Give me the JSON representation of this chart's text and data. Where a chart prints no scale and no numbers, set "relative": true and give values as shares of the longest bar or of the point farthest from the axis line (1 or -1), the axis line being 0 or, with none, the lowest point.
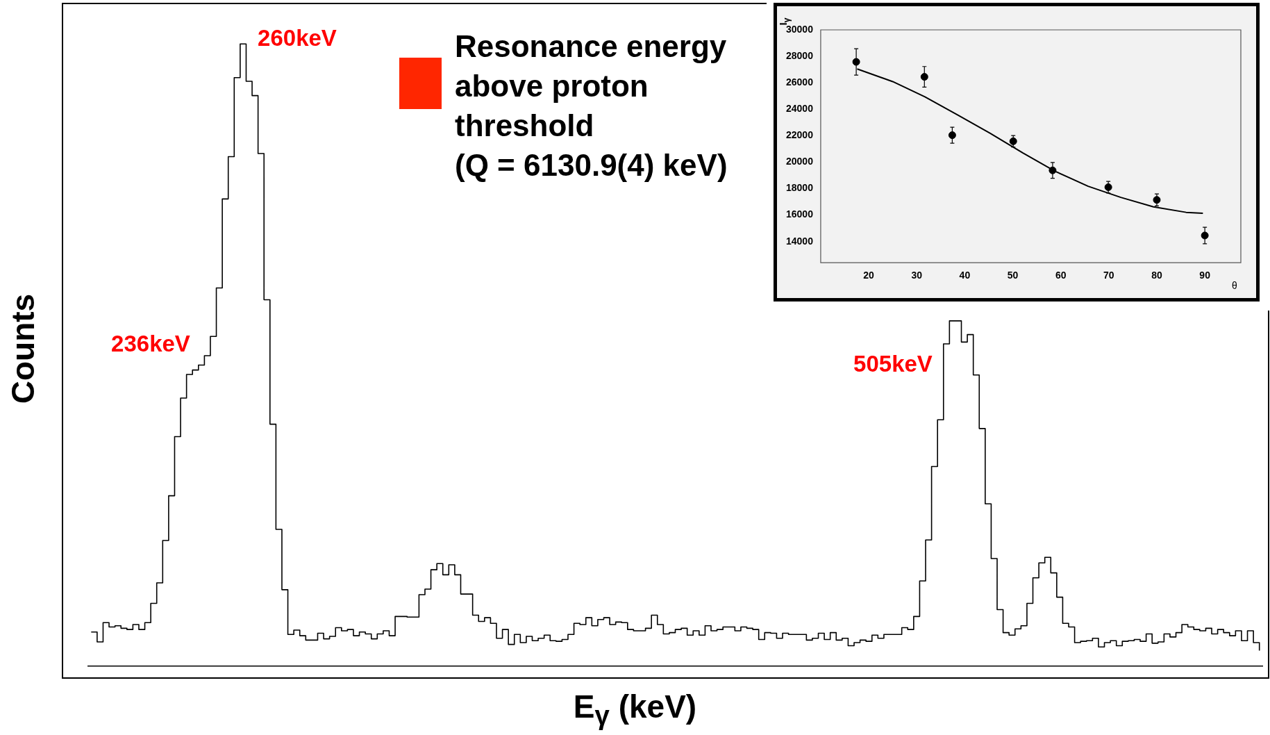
{
  "chart_data": [
    {
      "type": "step",
      "xlabel": "E$_{γ}$ (keV)",
      "ylabel": "Counts",
      "relative": true,
      "tick_labels": false,
      "color": "#000000",
      "annotations": [
        "260keV",
        "236keV",
        "505keV",
        "Resonance energy\nabove proton\nthreshold\n(Q = 6130.9(4) keV)"
      ],
      "categories": [
        null,
        null,
        null,
        null,
        null,
        null,
        null,
        null,
        null,
        null,
        null,
        null,
        null,
        null,
        null,
        null,
        null,
        null,
        null,
        null,
        null,
        null,
        null,
        null,
        null,
        null,
        null,
        null,
        null,
        null,
        null,
        null,
        null,
        null,
        null,
        null,
        null,
        null,
        null,
        null,
        null,
        null,
        null,
        null,
        null,
        null,
        null,
        null,
        null,
        null,
        null,
        null,
        null,
        null,
        null,
        null,
        null,
        null,
        null,
        null,
        null,
        null,
        null,
        null,
        null,
        null,
        null,
        null,
        null,
        null,
        null,
        null,
        null,
        null,
        null,
        null,
        null,
        null,
        null,
        null,
        null,
        null,
        null,
        null,
        null,
        null,
        null,
        null,
        null,
        null,
        null,
        null,
        null,
        null,
        null,
        null,
        null,
        null,
        null,
        null,
        null,
        null,
        null,
        null,
        null,
        null,
        null,
        null,
        null,
        null,
        null,
        null,
        null,
        null,
        null,
        null,
        null,
        null,
        null,
        null,
        null,
        null,
        null,
        null,
        null,
        null,
        null,
        null,
        null,
        null,
        null,
        null,
        null,
        null,
        null,
        null,
        null,
        null,
        null,
        null,
        null,
        null,
        null,
        null,
        null,
        null,
        null,
        null,
        null,
        null,
        null,
        null,
        null,
        null,
        null,
        null,
        null,
        null,
        null,
        null,
        null,
        null,
        null,
        null,
        null,
        null,
        null,
        null,
        null,
        null,
        null,
        null,
        null,
        null,
        null,
        null,
        null,
        null,
        null,
        null,
        null,
        null,
        null,
        null,
        null,
        null,
        null,
        null,
        null,
        null,
        null,
        null,
        null,
        null,
        null,
        null,
        null
      ],
      "values": [
        0.055,
        0.039,
        0.07,
        0.063,
        0.065,
        0.061,
        0.059,
        0.067,
        0.059,
        0.07,
        0.101,
        0.134,
        0.202,
        0.274,
        0.369,
        0.431,
        0.469,
        0.476,
        0.484,
        0.499,
        0.53,
        0.608,
        0.751,
        0.819,
        0.946,
        1,
        0.94,
        0.917,
        0.824,
        0.589,
        0.389,
        0.22,
        0.123,
        0.051,
        0.058,
        0.049,
        0.042,
        0.042,
        0.053,
        0.044,
        0.048,
        0.062,
        0.057,
        0.059,
        0.049,
        0.055,
        0.052,
        0.044,
        0.052,
        0.057,
        0.049,
        0.08,
        0.08,
        0.079,
        0.079,
        0.115,
        0.124,
        0.155,
        0.165,
        0.147,
        0.163,
        0.147,
        0.116,
        0.116,
        0.082,
        0.072,
        0.078,
        0.069,
        0.045,
        0.059,
        0.035,
        0.051,
        0.038,
        0.048,
        0.041,
        0.045,
        0.05,
        0.041,
        0.04,
        0.043,
        0.051,
        0.069,
        0.067,
        0.078,
        0.065,
        0.075,
        0.078,
        0.067,
        0.071,
        0.07,
        0.059,
        0.057,
        0.057,
        0.061,
        0.082,
        0.067,
        0.052,
        0.054,
        0.059,
        0.061,
        0.05,
        0.057,
        0.05,
        0.065,
        0.057,
        0.059,
        0.063,
        0.063,
        0.057,
        0.063,
        0.061,
        0.059,
        0.043,
        0.054,
        0.053,
        0.045,
        0.053,
        0.051,
        0.051,
        0.051,
        0.042,
        0.045,
        0.053,
        0.043,
        0.054,
        0.042,
        0.045,
        0.033,
        0.038,
        0.042,
        0.04,
        0.05,
        0.045,
        0.051,
        0.051,
        0.051,
        0.062,
        0.059,
        0.08,
        0.137,
        0.203,
        0.321,
        0.396,
        0.518,
        0.555,
        null,
        0.521,
        0.533,
        0.468,
        0.382,
        0.261,
        0.173,
        0.091,
        0.054,
        0.05,
        0.06,
        0.065,
        0.101,
        0.142,
        0.166,
        0.175,
        0.15,
        0.111,
        0.069,
        0.063,
        0.038,
        0.04,
        0.041,
        0.045,
        0.031,
        0.038,
        0.041,
        0.033,
        0.04,
        0.041,
        0.043,
        0.04,
        0.052,
        0.037,
        0.039,
        0.052,
        0.047,
        0.054,
        0.067,
        0.063,
        0.059,
        0.057,
        0.061,
        0.052,
        0.059,
        0.054,
        0.049,
        0.057,
        0.041,
        0.057,
        0.038,
        0.025
      ]
    },
    {
      "type": "scatter",
      "xlabel": "θ",
      "ylabel": "I$_{γ}$",
      "xlim": [
        10,
        97.5
      ],
      "ylim": [
        12400,
        30000
      ],
      "xticks": [
        20,
        30,
        40,
        50,
        60,
        70,
        80,
        90
      ],
      "yticks": [
        14000,
        16000,
        18000,
        20000,
        22000,
        24000,
        26000,
        28000,
        30000
      ],
      "series": [
        {
          "type": "scatter",
          "marker": "circle",
          "color": "#000000",
          "x": [
            17.4,
            31.6,
            37.4,
            50.1,
            58.3,
            69.9,
            80.0,
            90.0
          ],
          "values": [
            27580,
            26450,
            22040,
            21580,
            19380,
            18110,
            17150,
            14460
          ],
          "errors": [
            1000,
            780,
            600,
            430,
            600,
            440,
            450,
            620
          ]
        },
        {
          "type": "line",
          "marker": "none",
          "color": "#000000",
          "x": [
            17.6,
            25,
            31.7,
            38.5,
            45.3,
            52.1,
            58.9,
            65.7,
            72.5,
            79.3,
            86.1,
            89.6
          ],
          "values": [
            27050,
            26090,
            24940,
            23570,
            22180,
            20700,
            19300,
            18180,
            17340,
            16620,
            16210,
            16140
          ]
        }
      ]
    }
  ]
}
